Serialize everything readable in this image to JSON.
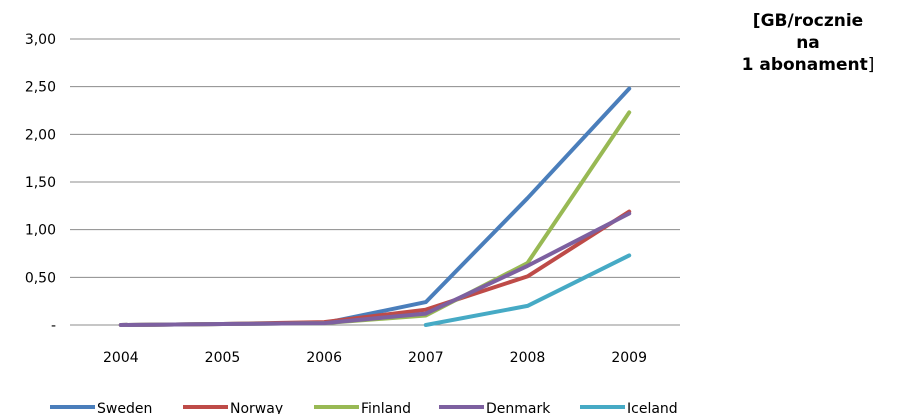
{
  "unit_label": {
    "line1": "[GB/rocznie",
    "line2": "na",
    "line3_bold": "1 abonament",
    "line3_end": "]"
  },
  "chart_data": {
    "type": "line",
    "categories": [
      "2004",
      "2005",
      "2006",
      "2007",
      "2008",
      "2009"
    ],
    "ylim": [
      0,
      3
    ],
    "yticks": [
      {
        "value": 0,
        "label": "-"
      },
      {
        "value": 0.5,
        "label": "0,50"
      },
      {
        "value": 1,
        "label": "1,00"
      },
      {
        "value": 1.5,
        "label": "1,50"
      },
      {
        "value": 2,
        "label": "2,00"
      },
      {
        "value": 2.5,
        "label": "2,50"
      },
      {
        "value": 3,
        "label": "3,00"
      }
    ],
    "grid": true,
    "legend_position": "bottom",
    "series": [
      {
        "name": "Sweden",
        "color": "#4a7ebb",
        "values": [
          0.0,
          0.01,
          0.02,
          0.24,
          1.33,
          2.48
        ]
      },
      {
        "name": "Norway",
        "color": "#be4b48",
        "values": [
          0.0,
          0.01,
          0.03,
          0.16,
          0.51,
          1.19
        ]
      },
      {
        "name": "Finland",
        "color": "#98b954",
        "values": [
          0.0,
          0.01,
          0.02,
          0.1,
          0.65,
          2.23
        ]
      },
      {
        "name": "Denmark",
        "color": "#7d60a0",
        "values": [
          0.0,
          0.01,
          0.02,
          0.12,
          0.62,
          1.17
        ]
      },
      {
        "name": "Iceland",
        "color": "#46aac5",
        "values": [
          null,
          null,
          null,
          0.0,
          0.2,
          0.73
        ]
      }
    ]
  }
}
